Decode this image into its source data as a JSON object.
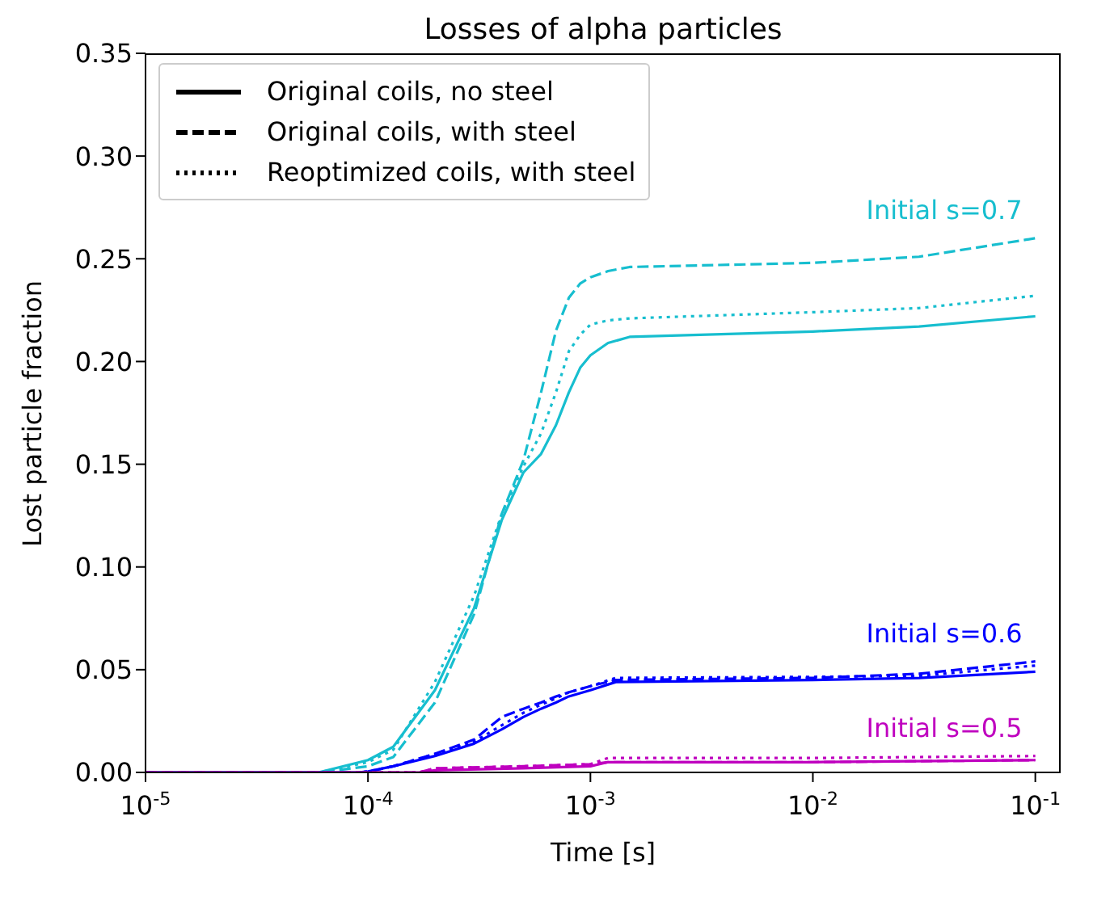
{
  "chart_data": {
    "type": "line",
    "title": "Losses of alpha particles",
    "xlabel": "Time [s]",
    "ylabel": "Lost particle fraction",
    "log": "x",
    "xlim": [
      1e-05,
      0.13
    ],
    "xticks": [
      {
        "value": 1e-05,
        "label": "10$^{-5}$"
      },
      {
        "value": 0.0001,
        "label": "10$^{-4}$"
      },
      {
        "value": 0.001,
        "label": "10$^{-3}$"
      },
      {
        "value": 0.01,
        "label": "10$^{-2}$"
      },
      {
        "value": 0.1,
        "label": "10$^{-1}$"
      }
    ],
    "ylim": [
      0,
      0.35
    ],
    "yticks": [
      {
        "value": 0,
        "label": "0.00"
      },
      {
        "value": 0.05,
        "label": "0.05"
      },
      {
        "value": 0.1,
        "label": "0.10"
      },
      {
        "value": 0.15,
        "label": "0.15"
      },
      {
        "value": 0.2,
        "label": "0.20"
      },
      {
        "value": 0.25,
        "label": "0.25"
      },
      {
        "value": 0.3,
        "label": "0.30"
      },
      {
        "value": 0.35,
        "label": "0.35"
      }
    ],
    "legend": "top left",
    "grid": false,
    "series": [
      {
        "name": "Original coils, no steel",
        "color": "#000000",
        "line_style": "solid"
      },
      {
        "name": "Original coils, with steel",
        "color": "#000000",
        "line_style": "dashed"
      },
      {
        "name": "Reoptimized coils, with steel",
        "color": "#000000",
        "line_style": "dotted"
      },
      {
        "name": "Initial s=0.7",
        "color": "#17becf",
        "line_style": "solid",
        "x": [
          1e-05,
          6e-05,
          0.0001,
          0.00013,
          0.0002,
          0.0003,
          0.0004,
          0.0005,
          0.0006,
          0.0007,
          0.0008,
          0.0009,
          0.001,
          0.0012,
          0.0015,
          0.01,
          0.03,
          0.1
        ],
        "values": [
          0,
          0,
          0.006,
          0.0125,
          0.04,
          0.08,
          0.123,
          0.146,
          0.155,
          0.169,
          0.185,
          0.197,
          0.203,
          0.209,
          0.212,
          0.2146,
          0.217,
          0.222
        ]
      },
      {
        "color": "#17becf",
        "line_style": "dashed",
        "x": [
          1e-05,
          6e-05,
          0.0001,
          0.00013,
          0.0002,
          0.0003,
          0.0004,
          0.0005,
          0.0006,
          0.0007,
          0.0008,
          0.0009,
          0.001,
          0.0012,
          0.0015,
          0.01,
          0.03,
          0.1
        ],
        "values": [
          0,
          0,
          0.003,
          0.0075,
          0.034,
          0.077,
          0.126,
          0.152,
          0.185,
          0.215,
          0.231,
          0.238,
          0.241,
          0.244,
          0.246,
          0.248,
          0.251,
          0.26
        ]
      },
      {
        "color": "#17becf",
        "line_style": "dotted",
        "x": [
          1e-05,
          6e-05,
          0.0001,
          0.00013,
          0.0002,
          0.0003,
          0.0004,
          0.0005,
          0.0006,
          0.0007,
          0.0008,
          0.0009,
          0.001,
          0.0012,
          0.0015,
          0.01,
          0.03,
          0.1
        ],
        "values": [
          0,
          0,
          0.005,
          0.011,
          0.044,
          0.086,
          0.126,
          0.149,
          0.165,
          0.185,
          0.205,
          0.213,
          0.218,
          0.22,
          0.221,
          0.224,
          0.226,
          0.232
        ]
      },
      {
        "name": "Initial s=0.6",
        "color": "#0000ff",
        "line_style": "solid",
        "x": [
          1e-05,
          9e-05,
          0.0001,
          0.00013,
          0.0002,
          0.0003,
          0.0004,
          0.0005,
          0.0006,
          0.0007,
          0.0008,
          0.001,
          0.0013,
          0.01,
          0.03,
          0.1
        ],
        "values": [
          0,
          0,
          0.0005,
          0.003,
          0.008,
          0.014,
          0.021,
          0.027,
          0.031,
          0.034,
          0.037,
          0.04,
          0.044,
          0.045,
          0.046,
          0.049
        ]
      },
      {
        "color": "#0000ff",
        "line_style": "dashed",
        "x": [
          1e-05,
          9e-05,
          0.0001,
          0.00013,
          0.0002,
          0.0003,
          0.0004,
          0.0005,
          0.0006,
          0.0007,
          0.0008,
          0.001,
          0.0013,
          0.01,
          0.03,
          0.1
        ],
        "values": [
          0,
          0,
          0.0003,
          0.003,
          0.009,
          0.016,
          0.027,
          0.031,
          0.034,
          0.037,
          0.039,
          0.042,
          0.045,
          0.046,
          0.048,
          0.054
        ]
      },
      {
        "color": "#0000ff",
        "line_style": "dotted",
        "x": [
          1e-05,
          9e-05,
          0.0001,
          0.00013,
          0.0002,
          0.0003,
          0.0004,
          0.0005,
          0.0006,
          0.0007,
          0.0008,
          0.001,
          0.0013,
          0.01,
          0.03,
          0.1
        ],
        "values": [
          0,
          0,
          0.0005,
          0.003,
          0.009,
          0.015,
          0.023,
          0.029,
          0.033,
          0.036,
          0.039,
          0.042,
          0.046,
          0.0465,
          0.047,
          0.052
        ]
      },
      {
        "name": "Initial s=0.5",
        "color": "#bf00bf",
        "line_style": "solid",
        "x": [
          1e-05,
          0.00017,
          0.0002,
          0.0005,
          0.001,
          0.0012,
          0.01,
          0.1
        ],
        "values": [
          0,
          0,
          0.001,
          0.002,
          0.003,
          0.005,
          0.005,
          0.006
        ]
      },
      {
        "color": "#bf00bf",
        "line_style": "dashed",
        "x": [
          1e-05,
          0.00017,
          0.0002,
          0.0005,
          0.001,
          0.0012,
          0.01,
          0.1
        ],
        "values": [
          0,
          0,
          0.002,
          0.003,
          0.004,
          0.005,
          0.005,
          0.006
        ]
      },
      {
        "color": "#bf00bf",
        "line_style": "dotted",
        "x": [
          1e-05,
          0.00017,
          0.0002,
          0.0005,
          0.001,
          0.0012,
          0.01,
          0.1
        ],
        "values": [
          0,
          0,
          0.002,
          0.003,
          0.004,
          0.007,
          0.007,
          0.008
        ]
      }
    ]
  }
}
